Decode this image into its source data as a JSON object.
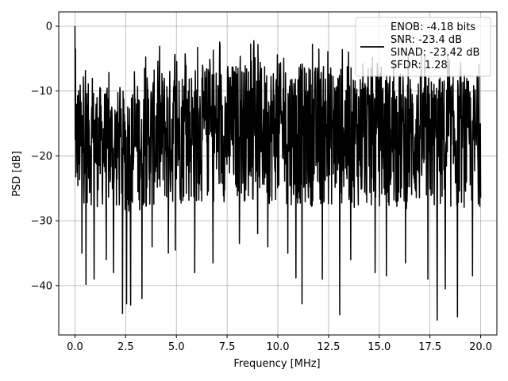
{
  "chart_data": {
    "type": "line",
    "title": "",
    "xlabel": "Frequency [MHz]",
    "ylabel": "PSD [dB]",
    "xlim": [
      -0.8,
      20.8
    ],
    "ylim": [
      -47.6,
      2.2
    ],
    "xticks": [
      0.0,
      2.5,
      5.0,
      7.5,
      10.0,
      12.5,
      15.0,
      17.5,
      20.0
    ],
    "xtick_labels": [
      "0.0",
      "2.5",
      "5.0",
      "7.5",
      "10.0",
      "12.5",
      "15.0",
      "17.5",
      "20.0"
    ],
    "yticks": [
      0,
      -10,
      -20,
      -30,
      -40
    ],
    "ytick_labels": [
      "0",
      "−10",
      "−20",
      "−30",
      "−40"
    ],
    "grid": true,
    "legend_position": "top-right",
    "series": [
      {
        "name": "ENOB: -4.18 bits\nSNR: -23.4 dB\nSINAD: -23.42 dB\nSFDR: 1.28",
        "color": "#000000",
        "description_of_values": "noise-like PSD trace spanning 0 to 20 MHz, mostly between -28 and -8 dB, peak 0 dB at 0 MHz, deep dips to about -45 dB",
        "peak": {
          "x": 0.0,
          "y": 0.0
        },
        "envelope_upper": {
          "x": [
            0.0,
            1.0,
            2.5,
            4.0,
            6.0,
            8.0,
            10.0,
            12.5,
            15.0,
            17.5,
            20.0
          ],
          "y": [
            -8.5,
            -9.0,
            -10.0,
            -6.5,
            -6.0,
            -5.5,
            -5.5,
            -6.0,
            -6.5,
            -7.5,
            -8.0
          ]
        },
        "envelope_lower": {
          "x": [
            0.0,
            1.0,
            2.5,
            4.0,
            6.0,
            8.0,
            10.0,
            12.5,
            15.0,
            17.5,
            20.0
          ],
          "y": [
            -27.0,
            -28.0,
            -29.0,
            -28.0,
            -27.5,
            -27.0,
            -27.5,
            -28.0,
            -28.0,
            -28.5,
            -28.0
          ]
        },
        "dips": [
          {
            "x": 0.35,
            "y": -35.0
          },
          {
            "x": 0.55,
            "y": -39.8
          },
          {
            "x": 0.95,
            "y": -39.0
          },
          {
            "x": 1.55,
            "y": -36.0
          },
          {
            "x": 1.9,
            "y": -38.0
          },
          {
            "x": 2.35,
            "y": -44.3
          },
          {
            "x": 2.55,
            "y": -42.8
          },
          {
            "x": 2.75,
            "y": -43.0
          },
          {
            "x": 3.3,
            "y": -42.0
          },
          {
            "x": 3.8,
            "y": -34.0
          },
          {
            "x": 4.6,
            "y": -35.0
          },
          {
            "x": 4.95,
            "y": -34.5
          },
          {
            "x": 5.9,
            "y": -38.0
          },
          {
            "x": 6.8,
            "y": -36.5
          },
          {
            "x": 8.1,
            "y": -33.5
          },
          {
            "x": 9.0,
            "y": -32.0
          },
          {
            "x": 9.5,
            "y": -34.0
          },
          {
            "x": 10.5,
            "y": -35.0
          },
          {
            "x": 10.9,
            "y": -38.8
          },
          {
            "x": 11.2,
            "y": -42.8
          },
          {
            "x": 12.2,
            "y": -39.0
          },
          {
            "x": 13.05,
            "y": -44.5
          },
          {
            "x": 13.6,
            "y": -36.0
          },
          {
            "x": 14.8,
            "y": -38.0
          },
          {
            "x": 15.35,
            "y": -38.5
          },
          {
            "x": 16.3,
            "y": -36.5
          },
          {
            "x": 17.4,
            "y": -39.0
          },
          {
            "x": 17.85,
            "y": -45.3
          },
          {
            "x": 18.25,
            "y": -40.5
          },
          {
            "x": 18.85,
            "y": -44.8
          },
          {
            "x": 19.6,
            "y": -38.5
          }
        ]
      }
    ]
  }
}
